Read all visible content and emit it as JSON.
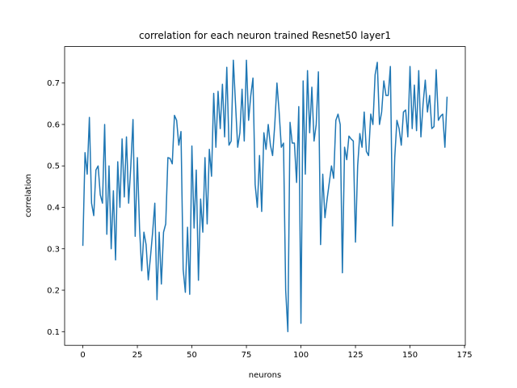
{
  "chart_data": {
    "type": "line",
    "title": "correlation for each neuron trained Resnet50 layer1",
    "x_label": "neurons",
    "y_label": "correlation",
    "x": [
      0,
      1,
      2,
      3,
      4,
      5,
      6,
      7,
      8,
      9,
      10,
      11,
      12,
      13,
      14,
      15,
      16,
      17,
      18,
      19,
      20,
      21,
      22,
      23,
      24,
      25,
      26,
      27,
      28,
      29,
      30,
      31,
      32,
      33,
      34,
      35,
      36,
      37,
      38,
      39,
      40,
      41,
      42,
      43,
      44,
      45,
      46,
      47,
      48,
      49,
      50,
      51,
      52,
      53,
      54,
      55,
      56,
      57,
      58,
      59,
      60,
      61,
      62,
      63,
      64,
      65,
      66,
      67,
      68,
      69,
      70,
      71,
      72,
      73,
      74,
      75,
      76,
      77,
      78,
      79,
      80,
      81,
      82,
      83,
      84,
      85,
      86,
      87,
      88,
      89,
      90,
      91,
      92,
      93,
      94,
      95,
      96,
      97,
      98,
      99,
      100,
      101,
      102,
      103,
      104,
      105,
      106,
      107,
      108,
      109,
      110,
      111,
      112,
      113,
      114,
      115,
      116,
      117,
      118,
      119,
      120,
      121,
      122,
      123,
      124,
      125,
      126,
      127,
      128,
      129,
      130,
      131,
      132,
      133,
      134,
      135,
      136,
      137,
      138,
      139,
      140,
      141,
      142,
      143,
      144,
      145,
      146,
      147,
      148,
      149,
      150,
      151,
      152,
      153,
      154,
      155,
      156,
      157,
      158,
      159,
      160,
      161,
      162,
      163,
      164,
      165,
      166,
      167
    ],
    "series": [
      {
        "name": "correlation",
        "color": "#1f77b4",
        "values": [
          0.307,
          0.532,
          0.48,
          0.617,
          0.41,
          0.38,
          0.49,
          0.5,
          0.43,
          0.41,
          0.6,
          0.335,
          0.5,
          0.3,
          0.44,
          0.273,
          0.51,
          0.4,
          0.565,
          0.425,
          0.57,
          0.41,
          0.5,
          0.612,
          0.33,
          0.52,
          0.35,
          0.247,
          0.34,
          0.31,
          0.225,
          0.28,
          0.34,
          0.41,
          0.177,
          0.34,
          0.215,
          0.34,
          0.36,
          0.52,
          0.518,
          0.505,
          0.622,
          0.61,
          0.55,
          0.583,
          0.25,
          0.195,
          0.352,
          0.19,
          0.548,
          0.35,
          0.49,
          0.224,
          0.42,
          0.34,
          0.52,
          0.36,
          0.54,
          0.475,
          0.675,
          0.545,
          0.68,
          0.59,
          0.697,
          0.57,
          0.738,
          0.55,
          0.56,
          0.755,
          0.65,
          0.545,
          0.58,
          0.685,
          0.56,
          0.755,
          0.61,
          0.67,
          0.712,
          0.455,
          0.4,
          0.525,
          0.39,
          0.58,
          0.54,
          0.6,
          0.55,
          0.525,
          0.6,
          0.7,
          0.63,
          0.545,
          0.555,
          0.2,
          0.1,
          0.605,
          0.555,
          0.555,
          0.46,
          0.643,
          0.12,
          0.705,
          0.48,
          0.73,
          0.58,
          0.69,
          0.56,
          0.6,
          0.727,
          0.31,
          0.48,
          0.375,
          0.42,
          0.46,
          0.5,
          0.47,
          0.61,
          0.625,
          0.6,
          0.242,
          0.545,
          0.515,
          0.572,
          0.565,
          0.56,
          0.316,
          0.5,
          0.578,
          0.545,
          0.63,
          0.535,
          0.525,
          0.625,
          0.6,
          0.72,
          0.75,
          0.6,
          0.63,
          0.705,
          0.67,
          0.67,
          0.74,
          0.355,
          0.52,
          0.61,
          0.59,
          0.55,
          0.63,
          0.635,
          0.57,
          0.74,
          0.59,
          0.695,
          0.585,
          0.73,
          0.57,
          0.65,
          0.707,
          0.63,
          0.67,
          0.59,
          0.595,
          0.732,
          0.61,
          0.62,
          0.625,
          0.545,
          0.667
        ]
      }
    ],
    "xlim": [
      -8.35,
      175.35
    ],
    "xticks": [
      0,
      25,
      50,
      75,
      100,
      125,
      150,
      175
    ],
    "ylim": [
      0.067,
      0.788
    ],
    "yticks": [
      0.1,
      0.2,
      0.3,
      0.4,
      0.5,
      0.6,
      0.7
    ]
  }
}
